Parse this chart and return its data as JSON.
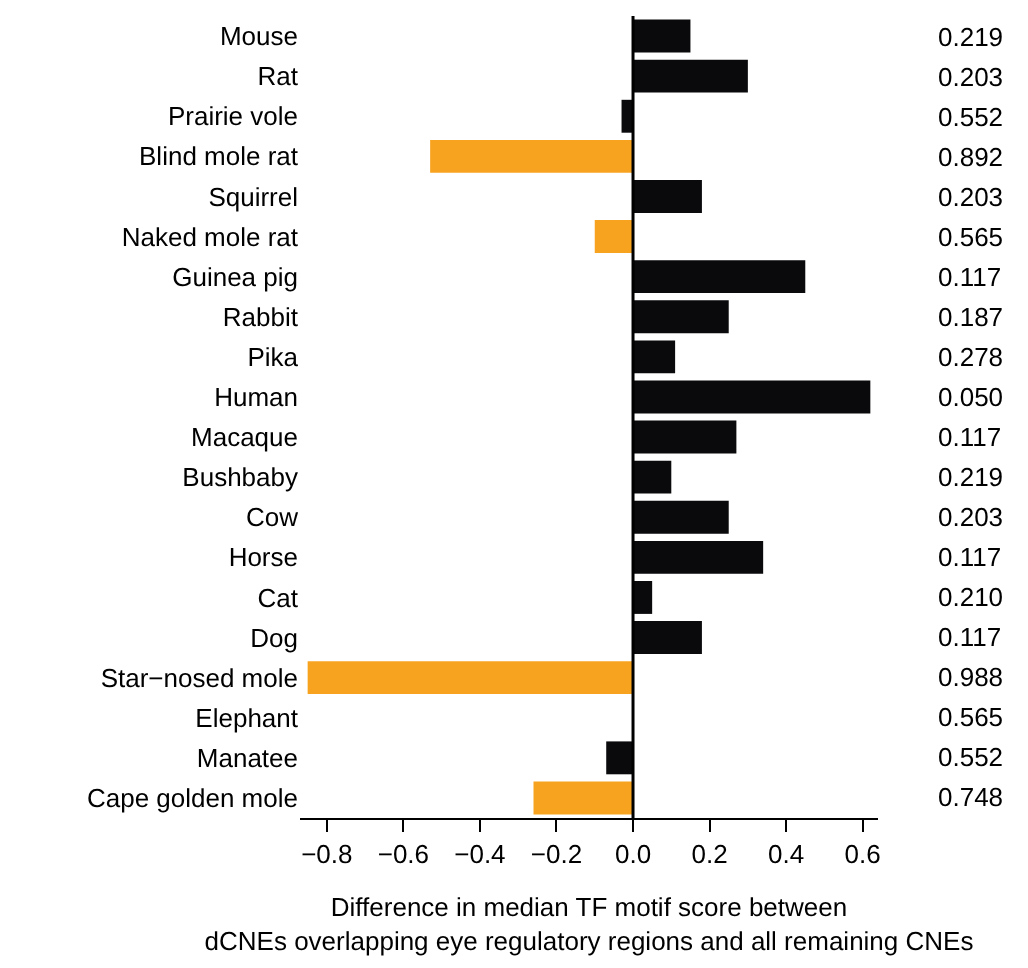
{
  "chart_data": {
    "type": "bar",
    "orientation": "horizontal",
    "xlabel": "Difference in median TF motif score between\ndCNEs overlapping eye regulatory regions and all remaining CNEs",
    "categories": [
      "Mouse",
      "Rat",
      "Prairie vole",
      "Blind mole rat",
      "Squirrel",
      "Naked mole rat",
      "Guinea pig",
      "Rabbit",
      "Pika",
      "Human",
      "Macaque",
      "Bushbaby",
      "Cow",
      "Horse",
      "Cat",
      "Dog",
      "Star−nosed mole",
      "Elephant",
      "Manatee",
      "Cape golden mole"
    ],
    "values": [
      0.15,
      0.3,
      -0.03,
      -0.53,
      0.18,
      -0.1,
      0.45,
      0.25,
      0.11,
      0.62,
      0.27,
      0.1,
      0.25,
      0.34,
      0.05,
      0.18,
      -0.85,
      0,
      -0.07,
      -0.26
    ],
    "colors": [
      "#0a0a0c",
      "#0a0a0c",
      "#0a0a0c",
      "#f7a31f",
      "#0a0a0c",
      "#f7a31f",
      "#0a0a0c",
      "#0a0a0c",
      "#0a0a0c",
      "#0a0a0c",
      "#0a0a0c",
      "#0a0a0c",
      "#0a0a0c",
      "#0a0a0c",
      "#0a0a0c",
      "#0a0a0c",
      "#f7a31f",
      "#0a0a0c",
      "#0a0a0c",
      "#f7a31f"
    ],
    "annotations": [
      "0.219",
      "0.203",
      "0.552",
      "0.892",
      "0.203",
      "0.565",
      "0.117",
      "0.187",
      "0.278",
      "0.050",
      "0.117",
      "0.219",
      "0.203",
      "0.117",
      "0.210",
      "0.117",
      "0.988",
      "0.565",
      "0.552",
      "0.748"
    ],
    "ref_lines": [
      {
        "axis": "x",
        "value": 0,
        "color": "#000000"
      }
    ],
    "xlim": [
      -0.87,
      0.64
    ],
    "xticks": [
      {
        "value": -0.8,
        "label": "−0.8"
      },
      {
        "value": -0.6,
        "label": "−0.6"
      },
      {
        "value": -0.4,
        "label": "−0.4"
      },
      {
        "value": -0.2,
        "label": "−0.2"
      },
      {
        "value": 0,
        "label": "0.0"
      },
      {
        "value": 0.2,
        "label": "0.2"
      },
      {
        "value": 0.4,
        "label": "0.4"
      },
      {
        "value": 0.6,
        "label": "0.6"
      }
    ],
    "legend": false
  }
}
